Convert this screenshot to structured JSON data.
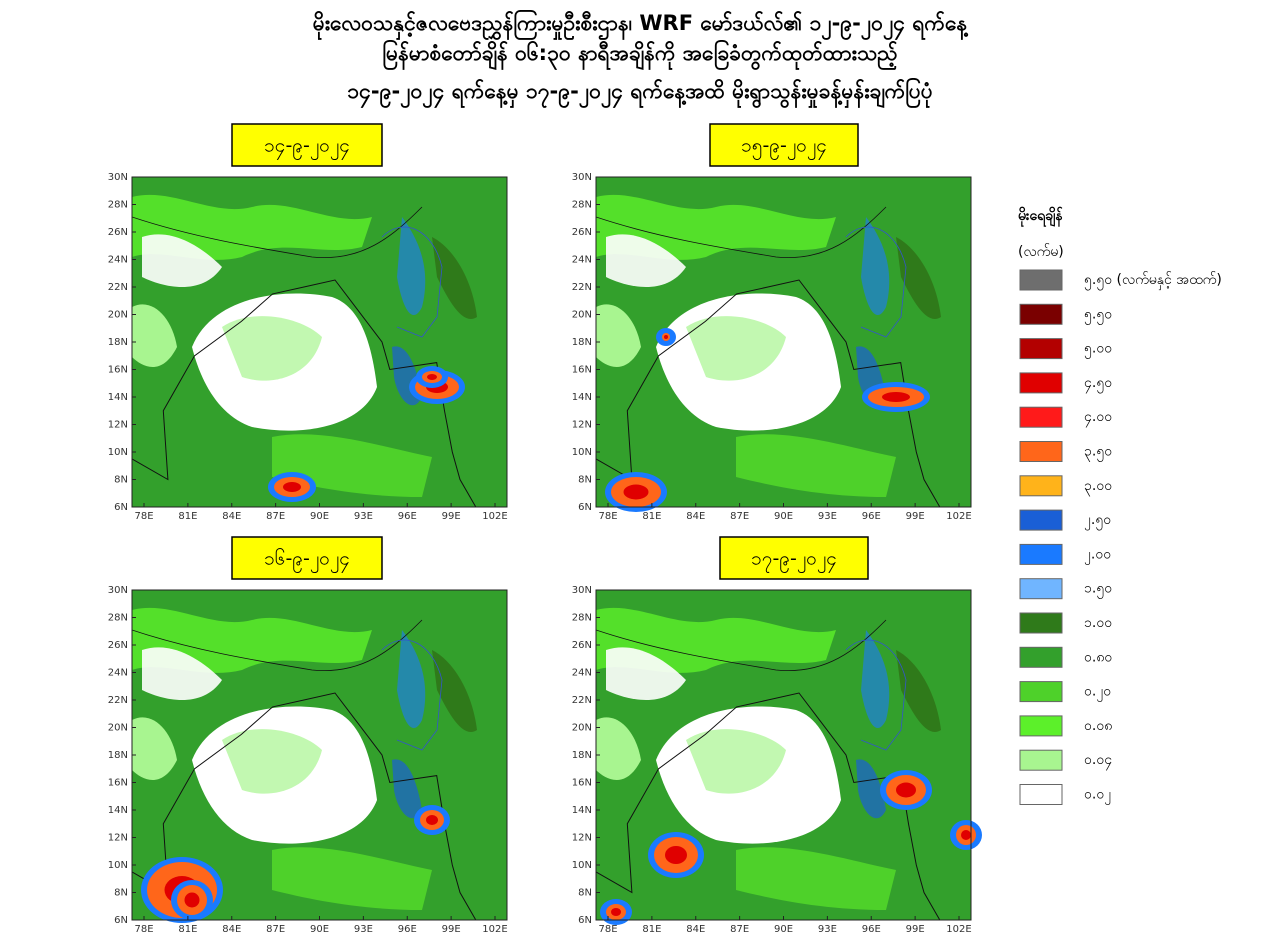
{
  "header": {
    "lines": [
      "မိုးလေဝသနှင့်ဇလဗေဒညွှန်ကြားမှုဦးစီးဌာန၊ WRF မော်ဒယ်လ်၏ ၁၂-၉-၂၀၂၄ ရက်နေ့",
      "မြန်မာစံတော်ချိန် ၀၆:၃၀ နာရီအချိန်ကို အခြေခံတွက်ထုတ်ထားသည့်",
      "၁၄-၉-၂၀၂၄ ရက်နေ့မှ ၁၇-၉-၂၀၂၄ ရက်နေ့အထိ မိုးရွာသွန်းမှုခန့်မှန်းချက်ပြပုံ"
    ]
  },
  "panels": [
    {
      "label": "၁၄-၉-၂၀၂၄"
    },
    {
      "label": "၁၅-၉-၂၀၂၄"
    },
    {
      "label": "၁၆-၉-၂၀၂၄"
    },
    {
      "label": "၁၇-၉-၂၀၂၄"
    }
  ],
  "axes": {
    "lat_labels": [
      "30N",
      "28N",
      "26N",
      "24N",
      "22N",
      "20N",
      "18N",
      "16N",
      "14N",
      "12N",
      "10N",
      "8N",
      "6N"
    ],
    "lon_labels": [
      "78E",
      "81E",
      "84E",
      "87E",
      "90E",
      "93E",
      "96E",
      "99E",
      "102E"
    ]
  },
  "legend": {
    "title": "မိုးရေချိန်",
    "unit": "(လက်မ)",
    "items": [
      {
        "label": "၅.၅၀ (လက်မနှင့် အထက်)",
        "color": "#6e6e6e"
      },
      {
        "label": "၅.၅၀",
        "color": "#7a0000"
      },
      {
        "label": "၅.၀၀",
        "color": "#b30000"
      },
      {
        "label": "၄.၅၀",
        "color": "#e00000"
      },
      {
        "label": "၄.၀၀",
        "color": "#ff1a1a"
      },
      {
        "label": "၃.၅၀",
        "color": "#ff661a"
      },
      {
        "label": "၃.၀၀",
        "color": "#ffb31a"
      },
      {
        "label": "၂.၅၀",
        "color": "#1a5fd6"
      },
      {
        "label": "၂.၀၀",
        "color": "#1a7aff"
      },
      {
        "label": "၁.၅၀",
        "color": "#70b5ff"
      },
      {
        "label": "၁.၀၀",
        "color": "#2f7a1a"
      },
      {
        "label": "၀.၈၀",
        "color": "#33a02c"
      },
      {
        "label": "၀.၂၀",
        "color": "#4ed12a"
      },
      {
        "label": "၀.၀၈",
        "color": "#5cf02a"
      },
      {
        "label": "၀.၀၄",
        "color": "#a8f590"
      },
      {
        "label": "၀.၀၂",
        "color": "#ffffff"
      }
    ]
  }
}
